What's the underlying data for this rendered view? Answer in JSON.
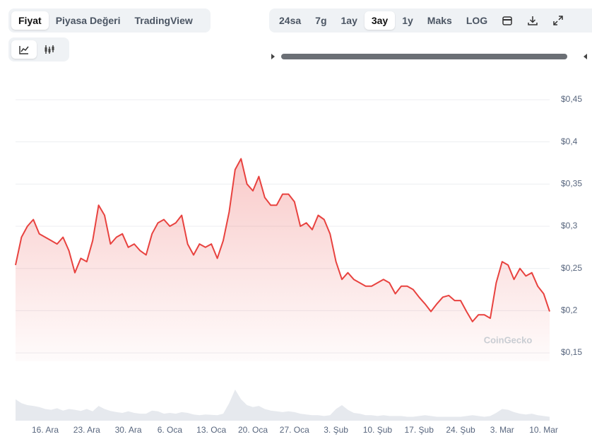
{
  "controls": {
    "views": [
      "Fiyat",
      "Piyasa Değeri",
      "TradingView"
    ],
    "ranges": [
      "24sa",
      "7g",
      "1ay",
      "3ay",
      "1y",
      "Maks",
      "LOG"
    ],
    "watermark": "CoinGecko"
  },
  "chart_data": {
    "type": "line",
    "categories": [
      null,
      null,
      null,
      null,
      null,
      "16. Ara",
      null,
      null,
      null,
      null,
      null,
      null,
      "23. Ara",
      null,
      null,
      null,
      null,
      null,
      null,
      "30. Ara",
      null,
      null,
      null,
      null,
      null,
      null,
      "6. Oca",
      null,
      null,
      null,
      null,
      null,
      null,
      "13. Oca",
      null,
      null,
      null,
      null,
      null,
      null,
      "20. Oca",
      null,
      null,
      null,
      null,
      null,
      null,
      "27. Oca",
      null,
      null,
      null,
      null,
      null,
      null,
      "3. Şub",
      null,
      null,
      null,
      null,
      null,
      null,
      "10. Şub",
      null,
      null,
      null,
      null,
      null,
      null,
      "17. Şub",
      null,
      null,
      null,
      null,
      null,
      null,
      "24. Şub",
      null,
      null,
      null,
      null,
      null,
      null,
      "3. Mar",
      null,
      null,
      null,
      null,
      null,
      null,
      "10. Mar",
      null
    ],
    "series": [
      {
        "color": "#e8423f",
        "values": [
          0.254,
          0.287,
          0.3,
          0.308,
          0.291,
          0.287,
          0.283,
          0.279,
          0.287,
          0.271,
          0.245,
          0.262,
          0.258,
          0.283,
          0.325,
          0.313,
          0.279,
          0.287,
          0.291,
          0.275,
          0.279,
          0.271,
          0.266,
          0.291,
          0.304,
          0.308,
          0.3,
          0.304,
          0.313,
          0.279,
          0.266,
          0.279,
          0.275,
          0.279,
          0.262,
          0.283,
          0.317,
          0.367,
          0.38,
          0.35,
          0.342,
          0.359,
          0.334,
          0.325,
          0.325,
          0.338,
          0.338,
          0.329,
          0.3,
          0.304,
          0.296,
          0.313,
          0.308,
          0.291,
          0.258,
          0.237,
          0.245,
          0.237,
          0.233,
          0.229,
          0.229,
          0.233,
          0.237,
          0.233,
          0.22,
          0.229,
          0.229,
          0.225,
          0.216,
          0.208,
          0.199,
          0.208,
          0.216,
          0.218,
          0.212,
          0.212,
          0.199,
          0.187,
          0.195,
          0.195,
          0.191,
          0.233,
          0.258,
          0.254,
          0.237,
          0.25,
          0.241,
          0.245,
          0.229,
          0.22,
          0.199
        ]
      },
      {
        "color": "#e6e9ee",
        "axis": "y2",
        "values": [
          55,
          45,
          40,
          38,
          35,
          30,
          28,
          32,
          26,
          30,
          28,
          25,
          30,
          24,
          38,
          30,
          25,
          22,
          20,
          24,
          20,
          18,
          18,
          26,
          24,
          18,
          20,
          18,
          22,
          20,
          16,
          14,
          16,
          15,
          14,
          18,
          45,
          80,
          55,
          40,
          35,
          38,
          30,
          26,
          24,
          22,
          24,
          22,
          18,
          16,
          14,
          14,
          12,
          14,
          30,
          40,
          28,
          20,
          18,
          14,
          14,
          12,
          14,
          12,
          12,
          12,
          10,
          10,
          12,
          14,
          12,
          10,
          10,
          10,
          10,
          10,
          12,
          14,
          12,
          10,
          12,
          20,
          30,
          28,
          22,
          18,
          16,
          18,
          14,
          12,
          10
        ]
      }
    ],
    "ylim": [
      0.14,
      0.46
    ],
    "yticks": [
      {
        "value": 0.15,
        "label": "$0,15"
      },
      {
        "value": 0.2,
        "label": "$0,2"
      },
      {
        "value": 0.25,
        "label": "$0,25"
      },
      {
        "value": 0.3,
        "label": "$0,3"
      },
      {
        "value": 0.35,
        "label": "$0,35"
      },
      {
        "value": 0.4,
        "label": "$0,4"
      },
      {
        "value": 0.45,
        "label": "$0,45"
      }
    ],
    "y2lim": [
      0,
      100
    ],
    "grid": true
  }
}
